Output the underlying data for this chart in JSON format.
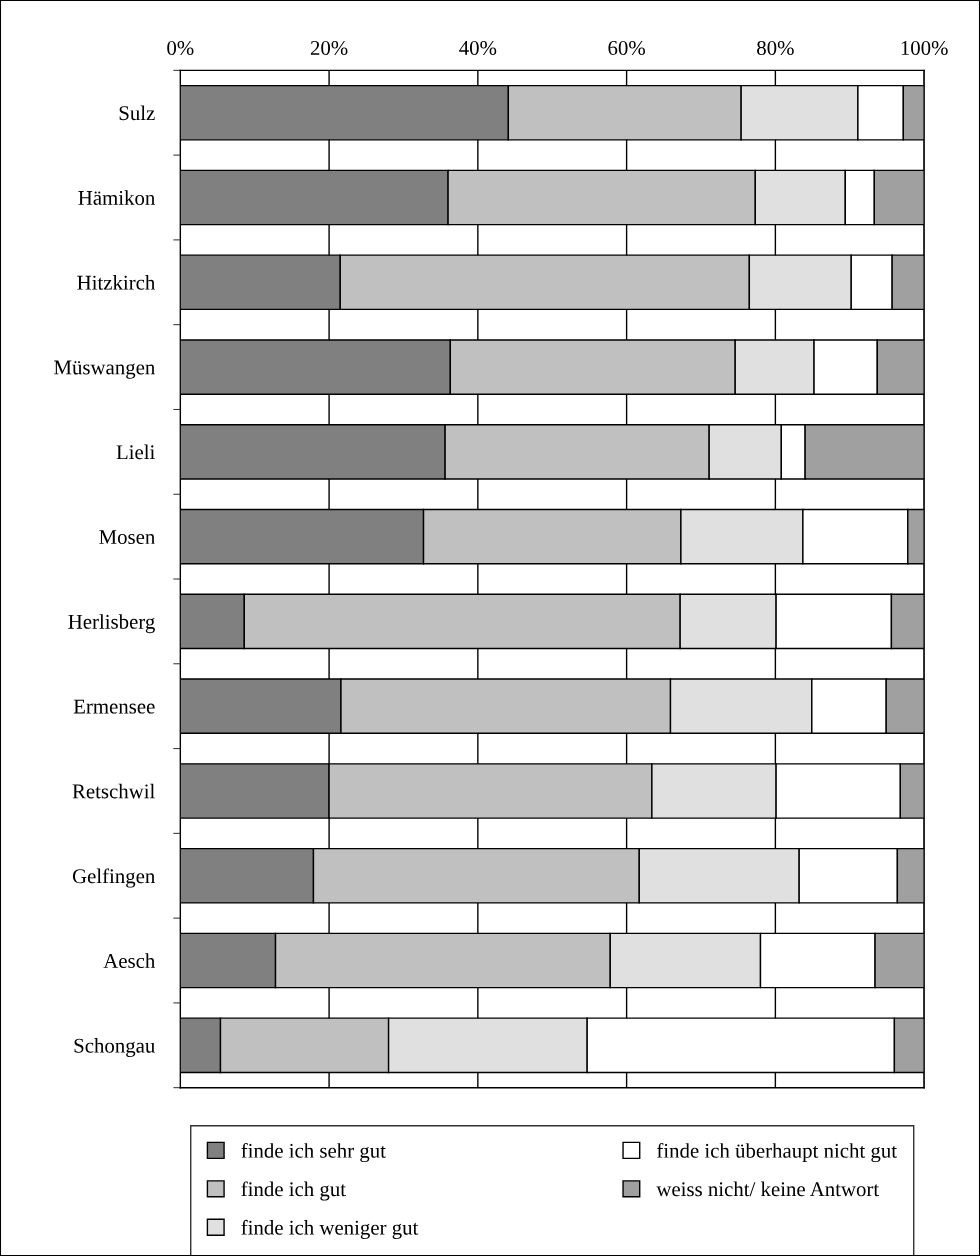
{
  "chart_data": {
    "type": "bar",
    "orientation": "horizontal",
    "stacked": true,
    "categories": [
      "Sulz",
      "Hämikon",
      "Hitzkirch",
      "Müswangen",
      "Lieli",
      "Mosen",
      "Herlisberg",
      "Ermensee",
      "Retschwil",
      "Gelfingen",
      "Aesch",
      "Schongau"
    ],
    "series": [
      {
        "name": "finde ich sehr gut",
        "color": "#808080",
        "values": [
          44.1,
          36.0,
          21.5,
          36.3,
          35.6,
          32.7,
          8.6,
          21.6,
          20.0,
          17.9,
          12.8,
          5.4
        ]
      },
      {
        "name": "finde ich gut",
        "color": "#c0c0c0",
        "values": [
          31.3,
          41.3,
          55.0,
          38.3,
          35.5,
          34.6,
          58.6,
          44.3,
          43.4,
          43.8,
          45.0,
          22.6
        ]
      },
      {
        "name": "finde ich weniger gut",
        "color": "#e0e0e0",
        "values": [
          15.7,
          12.1,
          13.7,
          10.6,
          9.7,
          16.4,
          12.9,
          19.0,
          16.7,
          21.5,
          20.2,
          26.7
        ]
      },
      {
        "name": "finde ich überhaupt nicht gut",
        "color": "#ffffff",
        "values": [
          6.1,
          3.9,
          5.5,
          8.5,
          3.2,
          14.1,
          15.5,
          10.0,
          16.7,
          13.2,
          15.4,
          41.3
        ]
      },
      {
        "name": "weiss nicht/ keine Antwort",
        "color": "#a0a0a0",
        "values": [
          2.8,
          6.7,
          4.3,
          6.3,
          16.0,
          2.2,
          4.4,
          5.1,
          3.2,
          3.6,
          6.6,
          4.0
        ]
      }
    ],
    "xlim": [
      0,
      100
    ],
    "xticks": [
      {
        "value": 0,
        "label": "0%"
      },
      {
        "value": 20,
        "label": "20%"
      },
      {
        "value": 40,
        "label": "40%"
      },
      {
        "value": 60,
        "label": "60%"
      },
      {
        "value": 80,
        "label": "80%"
      },
      {
        "value": 100,
        "label": "100%"
      }
    ],
    "grid": "x",
    "legend": "bottom"
  }
}
